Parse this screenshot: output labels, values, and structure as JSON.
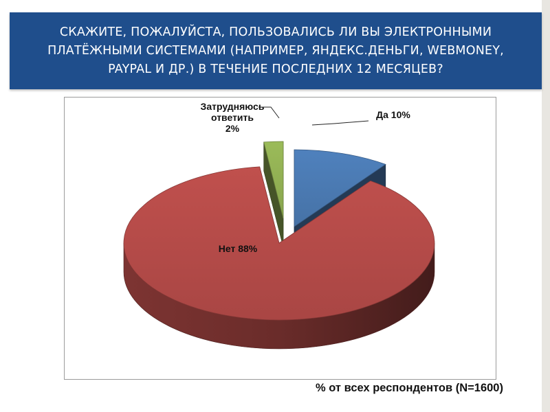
{
  "header": {
    "title": "СКАЖИТЕ, ПОЖАЛУЙСТА, ПОЛЬЗОВАЛИСЬ ЛИ ВЫ ЭЛЕКТРОННЫМИ ПЛАТЁЖНЫМИ СИСТЕМАМИ (НАПРИМЕР, ЯНДЕКС.ДЕНЬГИ, WEBMONEY, PAYPAL И ДР.) В ТЕЧЕНИЕ ПОСЛЕДНИХ 12 МЕСЯЦЕВ?"
  },
  "chart_data": {
    "type": "pie",
    "style": "3d-exploded",
    "slices": [
      {
        "label": "Да 10%",
        "value": 10,
        "color": "#4f81bd"
      },
      {
        "label": "Нет 88%",
        "value": 88,
        "color": "#c0504d"
      },
      {
        "label": "Затрудняюсь ответить 2%",
        "label_lines": [
          "Затрудняюсь",
          "ответить",
          "2%"
        ],
        "value": 2,
        "color": "#9bbb59"
      }
    ]
  },
  "footer": {
    "note": "% от всех респондентов (N=1600)"
  }
}
